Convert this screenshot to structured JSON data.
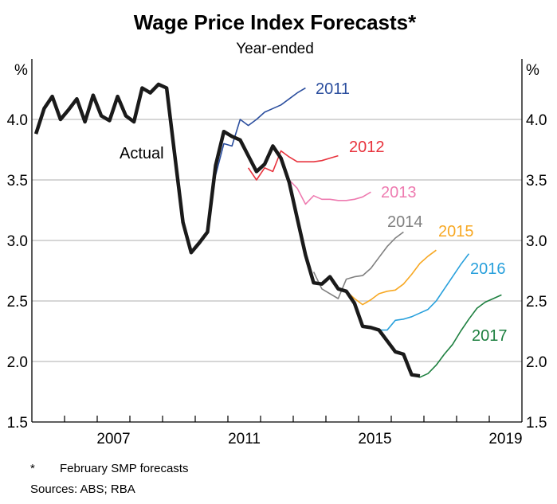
{
  "chart_data": {
    "type": "line",
    "title": "Wage Price Index Forecasts*",
    "subtitle": "Year-ended",
    "ylabel_left": "%",
    "ylabel_right": "%",
    "ylim": [
      1.5,
      4.5
    ],
    "yticks": [
      "1.5",
      "2.0",
      "2.5",
      "3.0",
      "3.5",
      "4.0"
    ],
    "xlim": [
      2005,
      2020
    ],
    "xticks": [
      "2007",
      "2011",
      "2015",
      "2019"
    ],
    "grid": true,
    "x_frequency": "quarterly",
    "series": [
      {
        "name": "Actual",
        "color": "#1a1a1a",
        "start": "2005-Q1",
        "values": [
          3.88,
          4.09,
          4.19,
          4.0,
          4.08,
          4.17,
          3.98,
          4.2,
          4.03,
          3.99,
          4.19,
          4.03,
          3.98,
          4.26,
          4.22,
          4.29,
          4.26,
          3.7,
          3.15,
          2.9,
          2.98,
          3.07,
          3.62,
          3.9,
          3.86,
          3.83,
          3.7,
          3.57,
          3.63,
          3.78,
          3.68,
          3.48,
          3.18,
          2.88,
          2.65,
          2.64,
          2.7,
          2.6,
          2.58,
          2.48,
          2.29,
          2.28,
          2.26,
          2.17,
          2.08,
          2.06,
          1.89,
          1.88
        ]
      },
      {
        "name": "2011",
        "color": "#2b4e9e",
        "start": "2010-Q3",
        "values": [
          3.54,
          3.8,
          3.78,
          4.0,
          3.95,
          4.0,
          4.06,
          4.09,
          4.12,
          4.17,
          4.22,
          4.26
        ]
      },
      {
        "name": "2012",
        "color": "#e8333d",
        "start": "2011-Q3",
        "values": [
          3.6,
          3.5,
          3.6,
          3.57,
          3.74,
          3.69,
          3.65,
          3.65,
          3.65,
          3.66,
          3.68,
          3.7
        ]
      },
      {
        "name": "2013",
        "color": "#ee7bb0",
        "start": "2012-Q3",
        "values": [
          3.68,
          3.5,
          3.43,
          3.3,
          3.37,
          3.34,
          3.34,
          3.33,
          3.33,
          3.34,
          3.36,
          3.4
        ]
      },
      {
        "name": "2014",
        "color": "#808080",
        "start": "2013-Q3",
        "values": [
          2.74,
          2.6,
          2.56,
          2.52,
          2.68,
          2.7,
          2.71,
          2.77,
          2.86,
          2.95,
          3.02,
          3.07
        ]
      },
      {
        "name": "2015",
        "color": "#f7a823",
        "start": "2014-Q3",
        "values": [
          2.58,
          2.52,
          2.47,
          2.51,
          2.56,
          2.58,
          2.59,
          2.64,
          2.72,
          2.81,
          2.87,
          2.92
        ]
      },
      {
        "name": "2016",
        "color": "#28a0dc",
        "start": "2015-Q3",
        "values": [
          2.26,
          2.26,
          2.34,
          2.35,
          2.37,
          2.4,
          2.43,
          2.5,
          2.6,
          2.7,
          2.8,
          2.89
        ]
      },
      {
        "name": "2017",
        "color": "#1e8040",
        "start": "2016-Q3",
        "values": [
          1.89,
          1.87,
          1.9,
          1.97,
          2.06,
          2.14,
          2.25,
          2.35,
          2.44,
          2.49,
          2.52,
          2.55
        ]
      }
    ]
  },
  "footnote": {
    "marker": "*",
    "text": "February SMP forecasts"
  },
  "sources": "Sources: ABS; RBA"
}
